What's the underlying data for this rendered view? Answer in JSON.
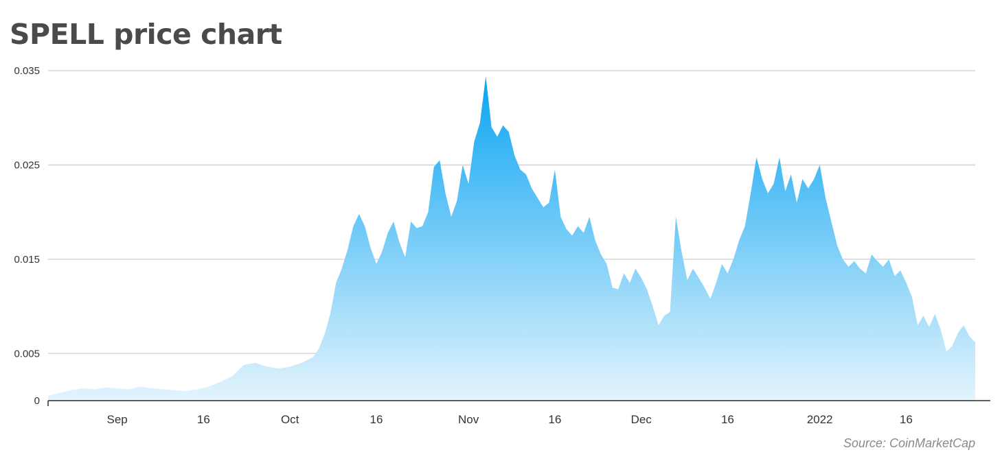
{
  "chart_data": {
    "type": "area",
    "title": "SPELL price chart",
    "source": "Source: CoinMarketCap",
    "xlabel": "",
    "ylabel": "",
    "ylim": [
      0,
      0.035
    ],
    "yticks": [
      {
        "value": 0,
        "label": "0"
      },
      {
        "value": 0.005,
        "label": "0.005"
      },
      {
        "value": 0.015,
        "label": "0.015"
      },
      {
        "value": 0.025,
        "label": "0.025"
      },
      {
        "value": 0.035,
        "label": "0.035"
      }
    ],
    "xlim": [
      "2021-08-20",
      "2022-01-28"
    ],
    "xticks": [
      {
        "date": "2021-09-01",
        "label": "Sep"
      },
      {
        "date": "2021-09-16",
        "label": "16"
      },
      {
        "date": "2021-10-01",
        "label": "Oct"
      },
      {
        "date": "2021-10-16",
        "label": "16"
      },
      {
        "date": "2021-11-01",
        "label": "Nov"
      },
      {
        "date": "2021-11-16",
        "label": "16"
      },
      {
        "date": "2021-12-01",
        "label": "Dec"
      },
      {
        "date": "2021-12-16",
        "label": "16"
      },
      {
        "date": "2022-01-01",
        "label": "2022"
      },
      {
        "date": "2022-01-16",
        "label": "16"
      }
    ],
    "grid": "horizontal",
    "fill_top_color": "#0aa4f2",
    "fill_bottom_color": "#e3f4fd",
    "series": [
      {
        "x": [
          "2021-08-20",
          "2021-08-22",
          "2021-08-24",
          "2021-08-26",
          "2021-08-28",
          "2021-08-30",
          "2021-09-01",
          "2021-09-03",
          "2021-09-05",
          "2021-09-07",
          "2021-09-09",
          "2021-09-11",
          "2021-09-13",
          "2021-09-15",
          "2021-09-17",
          "2021-09-19",
          "2021-09-21",
          "2021-09-23",
          "2021-09-25",
          "2021-09-27",
          "2021-09-29",
          "2021-10-01",
          "2021-10-03",
          "2021-10-05",
          "2021-10-06",
          "2021-10-07",
          "2021-10-08",
          "2021-10-09",
          "2021-10-10",
          "2021-10-11",
          "2021-10-12",
          "2021-10-13",
          "2021-10-14",
          "2021-10-15",
          "2021-10-16",
          "2021-10-17",
          "2021-10-18",
          "2021-10-19",
          "2021-10-20",
          "2021-10-21",
          "2021-10-22",
          "2021-10-23",
          "2021-10-24",
          "2021-10-25",
          "2021-10-26",
          "2021-10-27",
          "2021-10-28",
          "2021-10-29",
          "2021-10-30",
          "2021-10-31",
          "2021-11-01",
          "2021-11-02",
          "2021-11-03",
          "2021-11-04",
          "2021-11-05",
          "2021-11-06",
          "2021-11-07",
          "2021-11-08",
          "2021-11-09",
          "2021-11-10",
          "2021-11-11",
          "2021-11-12",
          "2021-11-13",
          "2021-11-14",
          "2021-11-15",
          "2021-11-16",
          "2021-11-17",
          "2021-11-18",
          "2021-11-19",
          "2021-11-20",
          "2021-11-21",
          "2021-11-22",
          "2021-11-23",
          "2021-11-24",
          "2021-11-25",
          "2021-11-26",
          "2021-11-27",
          "2021-11-28",
          "2021-11-29",
          "2021-11-30",
          "2021-12-01",
          "2021-12-02",
          "2021-12-03",
          "2021-12-04",
          "2021-12-05",
          "2021-12-06",
          "2021-12-07",
          "2021-12-08",
          "2021-12-09",
          "2021-12-10",
          "2021-12-11",
          "2021-12-12",
          "2021-12-13",
          "2021-12-14",
          "2021-12-15",
          "2021-12-16",
          "2021-12-17",
          "2021-12-18",
          "2021-12-19",
          "2021-12-20",
          "2021-12-21",
          "2021-12-22",
          "2021-12-23",
          "2021-12-24",
          "2021-12-25",
          "2021-12-26",
          "2021-12-27",
          "2021-12-28",
          "2021-12-29",
          "2021-12-30",
          "2021-12-31",
          "2022-01-01",
          "2022-01-02",
          "2022-01-03",
          "2022-01-04",
          "2022-01-05",
          "2022-01-06",
          "2022-01-07",
          "2022-01-08",
          "2022-01-09",
          "2022-01-10",
          "2022-01-11",
          "2022-01-12",
          "2022-01-13",
          "2022-01-14",
          "2022-01-15",
          "2022-01-16",
          "2022-01-17",
          "2022-01-18",
          "2022-01-19",
          "2022-01-20",
          "2022-01-21",
          "2022-01-22",
          "2022-01-23",
          "2022-01-24",
          "2022-01-25",
          "2022-01-26",
          "2022-01-27",
          "2022-01-28"
        ],
        "values": [
          0.0005,
          0.0008,
          0.0011,
          0.0013,
          0.0012,
          0.0014,
          0.0013,
          0.0012,
          0.0015,
          0.0013,
          0.0012,
          0.0011,
          0.001,
          0.0012,
          0.0015,
          0.002,
          0.0026,
          0.0038,
          0.004,
          0.0036,
          0.0034,
          0.0036,
          0.004,
          0.0046,
          0.0055,
          0.007,
          0.0092,
          0.0125,
          0.014,
          0.016,
          0.0185,
          0.0198,
          0.0185,
          0.0162,
          0.0145,
          0.0158,
          0.0178,
          0.019,
          0.0168,
          0.0152,
          0.019,
          0.0183,
          0.0185,
          0.02,
          0.0248,
          0.0255,
          0.022,
          0.0195,
          0.0212,
          0.025,
          0.023,
          0.0275,
          0.0295,
          0.0344,
          0.029,
          0.028,
          0.0292,
          0.0285,
          0.026,
          0.0245,
          0.024,
          0.0225,
          0.0215,
          0.0205,
          0.021,
          0.0245,
          0.0195,
          0.0182,
          0.0175,
          0.0185,
          0.0178,
          0.0195,
          0.017,
          0.0155,
          0.0145,
          0.012,
          0.0118,
          0.0135,
          0.0125,
          0.014,
          0.013,
          0.0118,
          0.01,
          0.008,
          0.009,
          0.0094,
          0.0195,
          0.0158,
          0.0128,
          0.014,
          0.013,
          0.012,
          0.0108,
          0.0125,
          0.0145,
          0.0135,
          0.015,
          0.017,
          0.0185,
          0.022,
          0.0258,
          0.0235,
          0.022,
          0.023,
          0.0258,
          0.0222,
          0.024,
          0.021,
          0.0235,
          0.0225,
          0.0235,
          0.025,
          0.0215,
          0.019,
          0.0165,
          0.015,
          0.0142,
          0.0148,
          0.014,
          0.0135,
          0.0155,
          0.0148,
          0.0142,
          0.015,
          0.0132,
          0.0138,
          0.0125,
          0.011,
          0.008,
          0.009,
          0.0078,
          0.0092,
          0.0075,
          0.0052,
          0.0058,
          0.0072,
          0.008,
          0.0068,
          0.0062
        ]
      }
    ]
  }
}
